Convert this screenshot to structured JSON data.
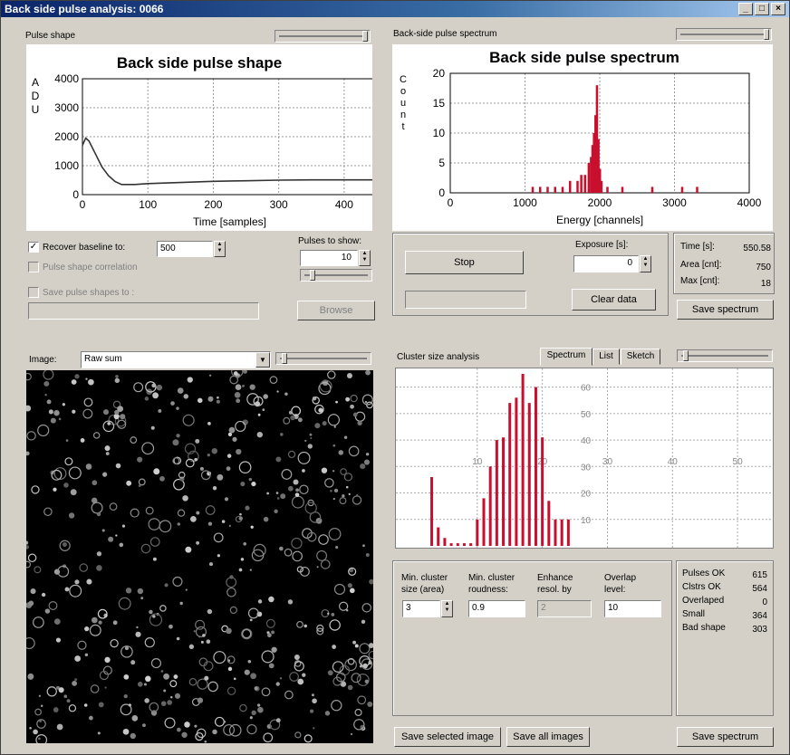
{
  "window": {
    "title": "Back side pulse analysis: 0066"
  },
  "pulse_shape": {
    "group_label": "Pulse shape",
    "recover_baseline_label": "Recover baseline to:",
    "recover_baseline_value": "500",
    "pulse_shape_correlation_label": "Pulse shape correlation",
    "save_pulse_shapes_label": "Save pulse shapes to :",
    "pulses_to_show_label": "Pulses to show:",
    "pulses_to_show_value": "10",
    "browse_label": "Browse"
  },
  "spectrum_panel": {
    "group_label": "Back-side pulse spectrum",
    "stop_label": "Stop",
    "exposure_label": "Exposure [s]:",
    "exposure_value": "0",
    "clear_label": "Clear data",
    "time_label": "Time [s]:",
    "time_value": "550.58",
    "area_label": "Area [cnt]:",
    "area_value": "750",
    "max_label": "Max [cnt]:",
    "max_value": "18",
    "save_label": "Save spectrum"
  },
  "image_panel": {
    "label": "Image:",
    "select_value": "Raw sum",
    "save_selected_label": "Save selected image",
    "save_all_label": "Save all images"
  },
  "cluster_panel": {
    "group_label": "Cluster size analysis",
    "tabs": [
      "Spectrum",
      "List",
      "Sketch"
    ],
    "min_size_label_1": "Min. cluster",
    "min_size_label_2": "size (area)",
    "min_size_value": "3",
    "min_round_label_1": "Min. cluster",
    "min_round_label_2": "roudness:",
    "min_round_value": "0.9",
    "enhance_label_1": "Enhance",
    "enhance_label_2": "resol. by",
    "enhance_value": "2",
    "overlap_label_1": "Overlap",
    "overlap_label_2": "level:",
    "overlap_value": "10",
    "stats": [
      {
        "label": "Pulses OK",
        "value": "615"
      },
      {
        "label": "Clstrs OK",
        "value": "564"
      },
      {
        "label": "Overlaped",
        "value": "0"
      },
      {
        "label": "Small",
        "value": "364"
      },
      {
        "label": "Bad shape",
        "value": "303"
      }
    ],
    "save_label": "Save spectrum"
  },
  "chart_data": [
    {
      "type": "line",
      "title": "Back side pulse shape",
      "xlabel": "Time [samples]",
      "ylabel": "ADU",
      "xlim": [
        0,
        450
      ],
      "ylim": [
        0,
        4000
      ],
      "xticks": [
        0,
        100,
        200,
        300,
        400
      ],
      "yticks": [
        0,
        1000,
        2000,
        3000,
        4000
      ],
      "grid": true,
      "x": [
        0,
        5,
        10,
        20,
        30,
        40,
        50,
        60,
        80,
        100,
        150,
        200,
        250,
        300,
        350,
        400,
        450
      ],
      "y": [
        1700,
        1950,
        1850,
        1400,
        950,
        650,
        450,
        350,
        350,
        380,
        420,
        460,
        480,
        500,
        510,
        510,
        510
      ]
    },
    {
      "type": "bar",
      "title": "Back side pulse spectrum",
      "xlabel": "Energy [channels]",
      "ylabel": "Count",
      "xlim": [
        0,
        4000
      ],
      "ylim": [
        0,
        20
      ],
      "xticks": [
        0,
        1000,
        2000,
        3000,
        4000
      ],
      "yticks": [
        0,
        5,
        10,
        15,
        20
      ],
      "grid": true,
      "x": [
        1100,
        1200,
        1300,
        1400,
        1500,
        1600,
        1700,
        1750,
        1800,
        1850,
        1880,
        1900,
        1920,
        1940,
        1960,
        1980,
        2000,
        2020,
        2100,
        2300,
        2700,
        3100,
        3300
      ],
      "values": [
        1,
        1,
        1,
        1,
        1,
        2,
        2,
        3,
        3,
        5,
        6,
        8,
        10,
        13,
        18,
        9,
        4,
        2,
        1,
        1,
        1,
        1,
        1
      ]
    },
    {
      "type": "bar",
      "title": "",
      "xlabel": "",
      "ylabel": "",
      "xlim": [
        0,
        55
      ],
      "ylim": [
        0,
        65
      ],
      "xticks": [
        10,
        20,
        30,
        40,
        50
      ],
      "yticks": [
        10,
        20,
        30,
        40,
        50,
        60
      ],
      "grid": true,
      "x": [
        3,
        4,
        5,
        6,
        7,
        8,
        9,
        10,
        11,
        12,
        13,
        14,
        15,
        16,
        17,
        18,
        19,
        20,
        21,
        22,
        23,
        24
      ],
      "values": [
        26,
        7,
        3,
        1,
        1,
        1,
        1,
        10,
        18,
        30,
        40,
        41,
        54,
        56,
        65,
        54,
        60,
        41,
        17,
        10,
        10,
        10
      ]
    }
  ]
}
